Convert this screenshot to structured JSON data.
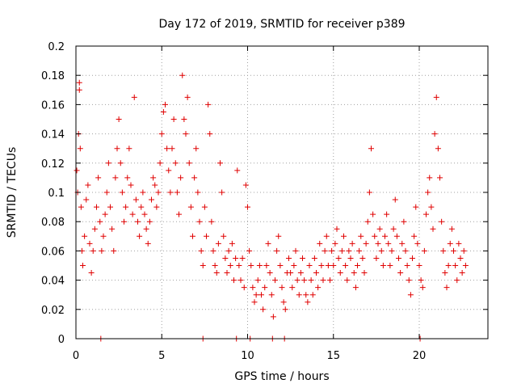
{
  "chart_data": {
    "type": "scatter",
    "title": "Day 172 of 2019, SRMTID for receiver p389",
    "xlabel": "GPS time / hours",
    "ylabel": "SRMTID / TECUs",
    "xlim": [
      0,
      24
    ],
    "ylim": [
      0,
      0.2
    ],
    "xticks": [
      0,
      5,
      10,
      15,
      20
    ],
    "xtick_labels": [
      "0",
      "5",
      "10",
      "15",
      "20"
    ],
    "yticks": [
      0,
      0.02,
      0.04,
      0.06,
      0.08,
      0.1,
      0.12,
      0.14,
      0.16,
      0.18,
      0.2
    ],
    "ytick_labels": [
      "0",
      "0.02",
      "0.04",
      "0.06",
      "0.08",
      "0.1",
      "0.12",
      "0.14",
      "0.16",
      "0.18",
      "0.2"
    ],
    "grid": true,
    "marker": "+",
    "color": "#e00000",
    "series": [
      {
        "name": "SRMTID",
        "points": [
          [
            0.05,
            0.115
          ],
          [
            0.1,
            0.1
          ],
          [
            0.15,
            0.14
          ],
          [
            0.2,
            0.175
          ],
          [
            0.2,
            0.17
          ],
          [
            0.25,
            0.13
          ],
          [
            0.3,
            0.09
          ],
          [
            0.35,
            0.06
          ],
          [
            0.4,
            0.05
          ],
          [
            0.5,
            0.07
          ],
          [
            0.6,
            0.095
          ],
          [
            0.7,
            0.105
          ],
          [
            0.8,
            0.065
          ],
          [
            0.9,
            0.045
          ],
          [
            1.0,
            0.06
          ],
          [
            1.1,
            0.075
          ],
          [
            1.2,
            0.09
          ],
          [
            1.3,
            0.11
          ],
          [
            1.4,
            0.08
          ],
          [
            1.5,
            0.06
          ],
          [
            1.6,
            0.07
          ],
          [
            1.7,
            0.085
          ],
          [
            1.8,
            0.1
          ],
          [
            1.9,
            0.12
          ],
          [
            2.0,
            0.09
          ],
          [
            2.1,
            0.075
          ],
          [
            2.2,
            0.06
          ],
          [
            2.3,
            0.11
          ],
          [
            2.4,
            0.13
          ],
          [
            2.5,
            0.15
          ],
          [
            2.6,
            0.12
          ],
          [
            2.7,
            0.1
          ],
          [
            2.8,
            0.08
          ],
          [
            2.9,
            0.09
          ],
          [
            3.0,
            0.11
          ],
          [
            3.1,
            0.13
          ],
          [
            3.2,
            0.105
          ],
          [
            3.3,
            0.085
          ],
          [
            3.4,
            0.165
          ],
          [
            3.5,
            0.095
          ],
          [
            3.6,
            0.08
          ],
          [
            3.7,
            0.07
          ],
          [
            3.8,
            0.09
          ],
          [
            3.9,
            0.1
          ],
          [
            4.0,
            0.085
          ],
          [
            4.1,
            0.075
          ],
          [
            4.2,
            0.065
          ],
          [
            4.3,
            0.08
          ],
          [
            4.4,
            0.095
          ],
          [
            4.5,
            0.11
          ],
          [
            4.6,
            0.105
          ],
          [
            4.7,
            0.09
          ],
          [
            4.8,
            0.1
          ],
          [
            4.9,
            0.12
          ],
          [
            5.0,
            0.14
          ],
          [
            5.1,
            0.155
          ],
          [
            5.2,
            0.16
          ],
          [
            5.3,
            0.13
          ],
          [
            5.4,
            0.115
          ],
          [
            5.5,
            0.1
          ],
          [
            5.6,
            0.13
          ],
          [
            5.7,
            0.15
          ],
          [
            5.8,
            0.12
          ],
          [
            5.9,
            0.1
          ],
          [
            6.0,
            0.085
          ],
          [
            6.1,
            0.11
          ],
          [
            6.2,
            0.18
          ],
          [
            6.3,
            0.15
          ],
          [
            6.4,
            0.14
          ],
          [
            6.5,
            0.165
          ],
          [
            6.6,
            0.12
          ],
          [
            6.7,
            0.09
          ],
          [
            6.8,
            0.07
          ],
          [
            6.9,
            0.11
          ],
          [
            7.0,
            0.13
          ],
          [
            7.1,
            0.1
          ],
          [
            7.2,
            0.08
          ],
          [
            7.3,
            0.06
          ],
          [
            7.4,
            0.05
          ],
          [
            7.5,
            0.09
          ],
          [
            7.6,
            0.07
          ],
          [
            7.7,
            0.16
          ],
          [
            7.8,
            0.14
          ],
          [
            7.9,
            0.08
          ],
          [
            8.0,
            0.06
          ],
          [
            8.1,
            0.05
          ],
          [
            8.2,
            0.045
          ],
          [
            8.3,
            0.065
          ],
          [
            8.4,
            0.12
          ],
          [
            8.5,
            0.1
          ],
          [
            8.6,
            0.07
          ],
          [
            8.7,
            0.055
          ],
          [
            8.8,
            0.045
          ],
          [
            8.9,
            0.06
          ],
          [
            9.0,
            0.05
          ],
          [
            9.1,
            0.065
          ],
          [
            9.2,
            0.04
          ],
          [
            9.3,
            0.055
          ],
          [
            9.4,
            0.115
          ],
          [
            9.5,
            0.05
          ],
          [
            9.6,
            0.04
          ],
          [
            9.7,
            0.055
          ],
          [
            9.8,
            0.035
          ],
          [
            9.9,
            0.105
          ],
          [
            10.0,
            0.09
          ],
          [
            10.1,
            0.06
          ],
          [
            10.2,
            0.05
          ],
          [
            10.3,
            0.035
          ],
          [
            10.4,
            0.025
          ],
          [
            10.5,
            0.03
          ],
          [
            10.6,
            0.04
          ],
          [
            10.7,
            0.05
          ],
          [
            10.8,
            0.03
          ],
          [
            10.9,
            0.02
          ],
          [
            11.0,
            0.035
          ],
          [
            11.1,
            0.05
          ],
          [
            11.2,
            0.065
          ],
          [
            11.3,
            0.045
          ],
          [
            11.4,
            0.03
          ],
          [
            11.5,
            0.015
          ],
          [
            11.6,
            0.04
          ],
          [
            11.7,
            0.06
          ],
          [
            11.8,
            0.07
          ],
          [
            11.9,
            0.05
          ],
          [
            12.0,
            0.035
          ],
          [
            12.1,
            0.025
          ],
          [
            12.2,
            0.02
          ],
          [
            12.3,
            0.045
          ],
          [
            12.4,
            0.055
          ],
          [
            12.5,
            0.045
          ],
          [
            12.6,
            0.035
          ],
          [
            12.7,
            0.05
          ],
          [
            12.8,
            0.06
          ],
          [
            12.9,
            0.04
          ],
          [
            13.0,
            0.03
          ],
          [
            13.1,
            0.045
          ],
          [
            13.2,
            0.055
          ],
          [
            13.3,
            0.04
          ],
          [
            13.4,
            0.03
          ],
          [
            13.5,
            0.025
          ],
          [
            13.6,
            0.05
          ],
          [
            13.7,
            0.04
          ],
          [
            13.8,
            0.03
          ],
          [
            13.9,
            0.055
          ],
          [
            14.0,
            0.045
          ],
          [
            14.1,
            0.035
          ],
          [
            14.2,
            0.065
          ],
          [
            14.3,
            0.05
          ],
          [
            14.4,
            0.04
          ],
          [
            14.5,
            0.06
          ],
          [
            14.6,
            0.07
          ],
          [
            14.7,
            0.05
          ],
          [
            14.8,
            0.04
          ],
          [
            14.9,
            0.06
          ],
          [
            15.0,
            0.05
          ],
          [
            15.1,
            0.065
          ],
          [
            15.2,
            0.075
          ],
          [
            15.3,
            0.055
          ],
          [
            15.4,
            0.045
          ],
          [
            15.5,
            0.06
          ],
          [
            15.6,
            0.07
          ],
          [
            15.7,
            0.05
          ],
          [
            15.8,
            0.04
          ],
          [
            15.9,
            0.06
          ],
          [
            16.0,
            0.055
          ],
          [
            16.1,
            0.065
          ],
          [
            16.2,
            0.045
          ],
          [
            16.3,
            0.035
          ],
          [
            16.4,
            0.05
          ],
          [
            16.5,
            0.06
          ],
          [
            16.6,
            0.07
          ],
          [
            16.7,
            0.055
          ],
          [
            16.8,
            0.045
          ],
          [
            16.9,
            0.065
          ],
          [
            17.0,
            0.08
          ],
          [
            17.1,
            0.1
          ],
          [
            17.2,
            0.13
          ],
          [
            17.3,
            0.085
          ],
          [
            17.4,
            0.07
          ],
          [
            17.5,
            0.055
          ],
          [
            17.6,
            0.065
          ],
          [
            17.7,
            0.075
          ],
          [
            17.8,
            0.06
          ],
          [
            17.9,
            0.05
          ],
          [
            18.0,
            0.07
          ],
          [
            18.1,
            0.085
          ],
          [
            18.2,
            0.065
          ],
          [
            18.3,
            0.05
          ],
          [
            18.4,
            0.06
          ],
          [
            18.5,
            0.075
          ],
          [
            18.6,
            0.095
          ],
          [
            18.7,
            0.07
          ],
          [
            18.8,
            0.055
          ],
          [
            18.9,
            0.045
          ],
          [
            19.0,
            0.065
          ],
          [
            19.1,
            0.08
          ],
          [
            19.2,
            0.06
          ],
          [
            19.3,
            0.05
          ],
          [
            19.4,
            0.04
          ],
          [
            19.5,
            0.03
          ],
          [
            19.6,
            0.055
          ],
          [
            19.7,
            0.07
          ],
          [
            19.8,
            0.09
          ],
          [
            19.9,
            0.065
          ],
          [
            20.0,
            0.05
          ],
          [
            20.1,
            0.04
          ],
          [
            20.2,
            0.035
          ],
          [
            20.3,
            0.06
          ],
          [
            20.4,
            0.085
          ],
          [
            20.5,
            0.1
          ],
          [
            20.6,
            0.11
          ],
          [
            20.7,
            0.09
          ],
          [
            20.8,
            0.075
          ],
          [
            20.9,
            0.14
          ],
          [
            21.0,
            0.165
          ],
          [
            21.1,
            0.13
          ],
          [
            21.2,
            0.11
          ],
          [
            21.3,
            0.08
          ],
          [
            21.4,
            0.06
          ],
          [
            21.5,
            0.045
          ],
          [
            21.6,
            0.035
          ],
          [
            21.7,
            0.05
          ],
          [
            21.8,
            0.065
          ],
          [
            21.9,
            0.075
          ],
          [
            22.0,
            0.06
          ],
          [
            22.1,
            0.05
          ],
          [
            22.2,
            0.04
          ],
          [
            22.3,
            0.065
          ],
          [
            22.4,
            0.055
          ],
          [
            22.5,
            0.045
          ],
          [
            22.6,
            0.06
          ],
          [
            22.7,
            0.05
          ],
          [
            1.45,
            0.0
          ],
          [
            7.4,
            0.0
          ],
          [
            9.35,
            0.0
          ],
          [
            10.15,
            0.0
          ],
          [
            11.45,
            0.0
          ],
          [
            12.15,
            0.0
          ],
          [
            20.05,
            0.0
          ]
        ]
      }
    ]
  }
}
